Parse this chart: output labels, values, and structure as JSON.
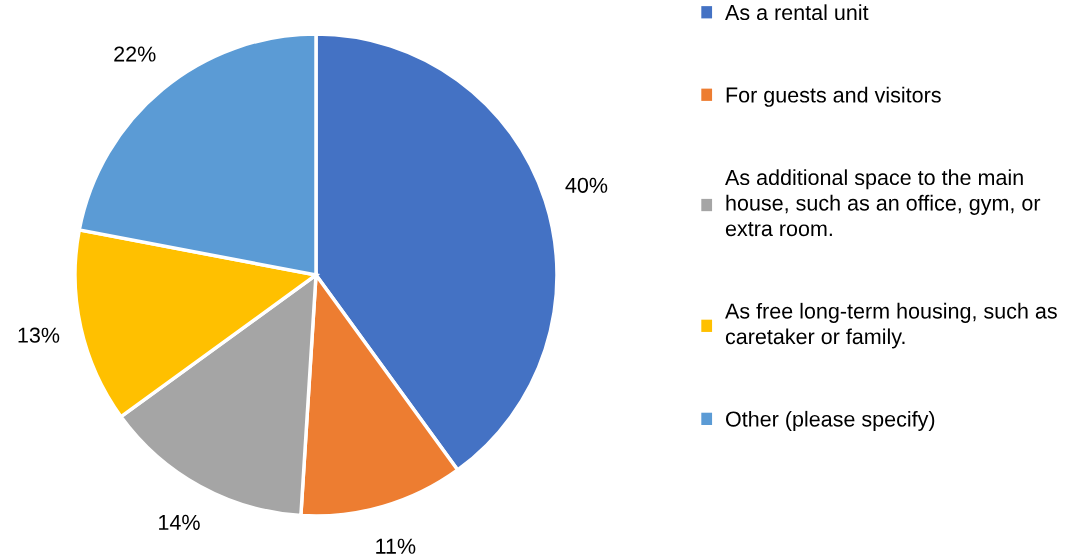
{
  "chart_data": {
    "type": "pie",
    "categories": [
      "As a rental unit",
      "For guests and visitors",
      "As additional space to the main house, such as an office, gym, or extra room.",
      "As free long-term housing, such as caretaker or family.",
      "Other (please specify)"
    ],
    "values": [
      40,
      11,
      14,
      13,
      22
    ],
    "colors": [
      "#4472c4",
      "#ed7d31",
      "#a5a5a5",
      "#ffc000",
      "#5b9bd5"
    ],
    "value_labels": [
      "40%",
      "11%",
      "14%",
      "13%",
      "22%"
    ],
    "legend": "right"
  }
}
